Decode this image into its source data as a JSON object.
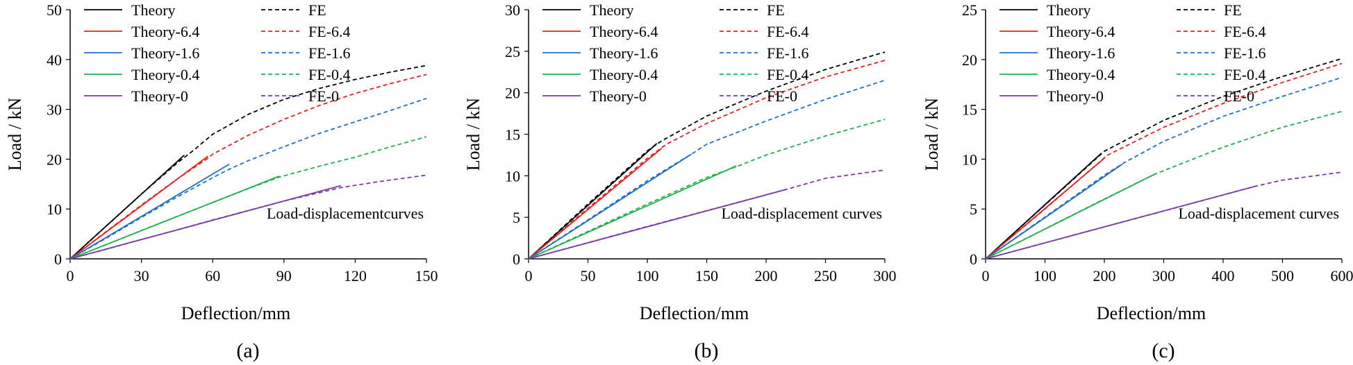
{
  "figure": {
    "captions": [
      "(a)",
      "(b)",
      "(c)"
    ]
  },
  "colors": {
    "theory": "#000000",
    "s64": "#e8201e",
    "s16": "#1f6fc4",
    "s04": "#1fb04c",
    "s0": "#7a3aa8",
    "axis": "#000000"
  },
  "chart_data": [
    {
      "type": "line",
      "caption": "(a)",
      "xlabel": "Deflection/mm",
      "ylabel": "Load / kN",
      "xlim": [
        0,
        150
      ],
      "ylim": [
        0,
        50
      ],
      "xticks": [
        0,
        30,
        60,
        90,
        120,
        150
      ],
      "yticks": [
        0,
        10,
        20,
        30,
        40,
        50
      ],
      "annotation": "Load-displacementcurves",
      "grid": false,
      "legend": "top-left, two columns",
      "series": [
        {
          "name": "Theory",
          "style": "solid",
          "color_key": "theory",
          "x": [
            0,
            48
          ],
          "y": [
            0,
            20.8
          ]
        },
        {
          "name": "FE",
          "style": "dashed",
          "color_key": "theory",
          "x": [
            0,
            15,
            30,
            45,
            52,
            60,
            75,
            90,
            105,
            120,
            135,
            150
          ],
          "y": [
            0,
            6.5,
            13,
            19.2,
            21.8,
            25,
            29,
            32,
            34.2,
            36,
            37.5,
            38.8
          ]
        },
        {
          "name": "Theory-6.4",
          "style": "solid",
          "color_key": "s64",
          "x": [
            0,
            58
          ],
          "y": [
            0,
            20.6
          ]
        },
        {
          "name": "FE-6.4",
          "style": "dashed",
          "color_key": "s64",
          "x": [
            0,
            15,
            30,
            45,
            58,
            60,
            75,
            90,
            105,
            120,
            135,
            150
          ],
          "y": [
            0,
            5.4,
            10.8,
            16,
            20.2,
            21,
            24.8,
            28,
            30.8,
            33.2,
            35.2,
            37
          ]
        },
        {
          "name": "Theory-1.6",
          "style": "solid",
          "color_key": "s16",
          "x": [
            0,
            67
          ],
          "y": [
            0,
            19
          ]
        },
        {
          "name": "FE-1.6",
          "style": "dashed",
          "color_key": "s16",
          "x": [
            0,
            15,
            30,
            45,
            60,
            67,
            75,
            90,
            105,
            120,
            135,
            150
          ],
          "y": [
            0,
            4.1,
            8.3,
            12.4,
            16.3,
            18,
            19.7,
            22.5,
            25.2,
            27.5,
            29.8,
            32.2
          ]
        },
        {
          "name": "Theory-0.4",
          "style": "solid",
          "color_key": "s04",
          "x": [
            0,
            88
          ],
          "y": [
            0,
            16.6
          ]
        },
        {
          "name": "FE-0.4",
          "style": "dashed",
          "color_key": "s04",
          "x": [
            0,
            15,
            30,
            45,
            60,
            75,
            88,
            105,
            120,
            135,
            150
          ],
          "y": [
            0,
            2.8,
            5.7,
            8.5,
            11.3,
            14.1,
            16.4,
            18.6,
            20.4,
            22.5,
            24.5
          ]
        },
        {
          "name": "Theory-0",
          "style": "solid",
          "color_key": "s0",
          "x": [
            0,
            114
          ],
          "y": [
            0,
            14.7
          ]
        },
        {
          "name": "FE-0",
          "style": "dashed",
          "color_key": "s0",
          "x": [
            0,
            15,
            30,
            45,
            60,
            75,
            90,
            114,
            130,
            150
          ],
          "y": [
            0,
            1.9,
            3.9,
            5.8,
            7.8,
            9.7,
            11.6,
            14.3,
            15.5,
            16.8
          ]
        }
      ]
    },
    {
      "type": "line",
      "caption": "(b)",
      "xlabel": "Deflection/mm",
      "ylabel": "Load / kN",
      "xlim": [
        0,
        300
      ],
      "ylim": [
        0,
        30
      ],
      "xticks": [
        0,
        50,
        100,
        150,
        200,
        250,
        300
      ],
      "yticks": [
        0,
        5,
        10,
        15,
        20,
        25,
        30
      ],
      "annotation": "Load-displacement curves",
      "grid": false,
      "legend": "top-left, two columns",
      "series": [
        {
          "name": "Theory",
          "style": "solid",
          "color_key": "theory",
          "x": [
            0,
            108
          ],
          "y": [
            0,
            13.9
          ]
        },
        {
          "name": "FE",
          "style": "dashed",
          "color_key": "theory",
          "x": [
            0,
            50,
            100,
            112,
            150,
            200,
            250,
            300
          ],
          "y": [
            0,
            6.6,
            13,
            14.2,
            17.2,
            20.2,
            22.8,
            24.9
          ]
        },
        {
          "name": "Theory-6.4",
          "style": "solid",
          "color_key": "s64",
          "x": [
            0,
            112
          ],
          "y": [
            0,
            13.3
          ]
        },
        {
          "name": "FE-6.4",
          "style": "dashed",
          "color_key": "s64",
          "x": [
            0,
            50,
            100,
            116,
            150,
            200,
            250,
            300
          ],
          "y": [
            0,
            6.1,
            12.1,
            13.8,
            16.3,
            19.4,
            21.9,
            23.9
          ]
        },
        {
          "name": "Theory-1.6",
          "style": "solid",
          "color_key": "s16",
          "x": [
            0,
            137
          ],
          "y": [
            0,
            12.6
          ]
        },
        {
          "name": "FE-1.6",
          "style": "dashed",
          "color_key": "s16",
          "x": [
            0,
            50,
            100,
            137,
            150,
            200,
            250,
            300
          ],
          "y": [
            0,
            4.7,
            9.4,
            12.6,
            13.8,
            16.6,
            19.2,
            21.5
          ]
        },
        {
          "name": "Theory-0.4",
          "style": "solid",
          "color_key": "s04",
          "x": [
            0,
            175
          ],
          "y": [
            0,
            11.2
          ]
        },
        {
          "name": "FE-0.4",
          "style": "dashed",
          "color_key": "s04",
          "x": [
            0,
            50,
            100,
            150,
            175,
            200,
            250,
            300
          ],
          "y": [
            0,
            3.3,
            6.6,
            9.8,
            11.1,
            12.5,
            14.8,
            16.8
          ]
        },
        {
          "name": "Theory-0",
          "style": "solid",
          "color_key": "s0",
          "x": [
            0,
            218
          ],
          "y": [
            0,
            8.4
          ]
        },
        {
          "name": "FE-0",
          "style": "dashed",
          "color_key": "s0",
          "x": [
            0,
            50,
            100,
            150,
            218,
            250,
            300
          ],
          "y": [
            0,
            1.95,
            3.9,
            5.8,
            8.4,
            9.7,
            10.7
          ]
        }
      ]
    },
    {
      "type": "line",
      "caption": "(c)",
      "xlabel": "Deflection/mm",
      "ylabel": "Load / kN",
      "xlim": [
        0,
        600
      ],
      "ylim": [
        0,
        25
      ],
      "xticks": [
        0,
        100,
        200,
        300,
        400,
        500,
        600
      ],
      "yticks": [
        0,
        5,
        10,
        15,
        20,
        25
      ],
      "annotation": "Load-displacement curves",
      "grid": false,
      "legend": "top-left, two columns",
      "series": [
        {
          "name": "Theory",
          "style": "solid",
          "color_key": "theory",
          "x": [
            0,
            195
          ],
          "y": [
            0,
            10.6
          ]
        },
        {
          "name": "FE",
          "style": "dashed",
          "color_key": "theory",
          "x": [
            0,
            100,
            200,
            300,
            400,
            500,
            600
          ],
          "y": [
            0,
            5.4,
            10.8,
            13.9,
            16.3,
            18.3,
            20.1
          ]
        },
        {
          "name": "Theory-6.4",
          "style": "solid",
          "color_key": "s64",
          "x": [
            0,
            200
          ],
          "y": [
            0,
            10.1
          ]
        },
        {
          "name": "FE-6.4",
          "style": "dashed",
          "color_key": "s64",
          "x": [
            0,
            100,
            205,
            300,
            400,
            500,
            600
          ],
          "y": [
            0,
            5.0,
            10.4,
            13.2,
            15.6,
            17.7,
            19.6
          ]
        },
        {
          "name": "Theory-1.6",
          "style": "solid",
          "color_key": "s16",
          "x": [
            0,
            230
          ],
          "y": [
            0,
            9.5
          ]
        },
        {
          "name": "FE-1.6",
          "style": "dashed",
          "color_key": "s16",
          "x": [
            0,
            100,
            200,
            235,
            300,
            400,
            500,
            600
          ],
          "y": [
            0,
            4.2,
            8.4,
            9.7,
            11.8,
            14.3,
            16.3,
            18.2
          ]
        },
        {
          "name": "Theory-0.4",
          "style": "solid",
          "color_key": "s04",
          "x": [
            0,
            285
          ],
          "y": [
            0,
            8.5
          ]
        },
        {
          "name": "FE-0.4",
          "style": "dashed",
          "color_key": "s04",
          "x": [
            0,
            100,
            200,
            285,
            400,
            500,
            600
          ],
          "y": [
            0,
            3.0,
            6.0,
            8.5,
            11.2,
            13.2,
            14.8
          ]
        },
        {
          "name": "Theory-0",
          "style": "solid",
          "color_key": "s0",
          "x": [
            0,
            455
          ],
          "y": [
            0,
            7.3
          ]
        },
        {
          "name": "FE-0",
          "style": "dashed",
          "color_key": "s0",
          "x": [
            0,
            100,
            200,
            300,
            455,
            500,
            600
          ],
          "y": [
            0,
            1.6,
            3.2,
            4.8,
            7.3,
            7.9,
            8.7
          ]
        }
      ]
    }
  ]
}
